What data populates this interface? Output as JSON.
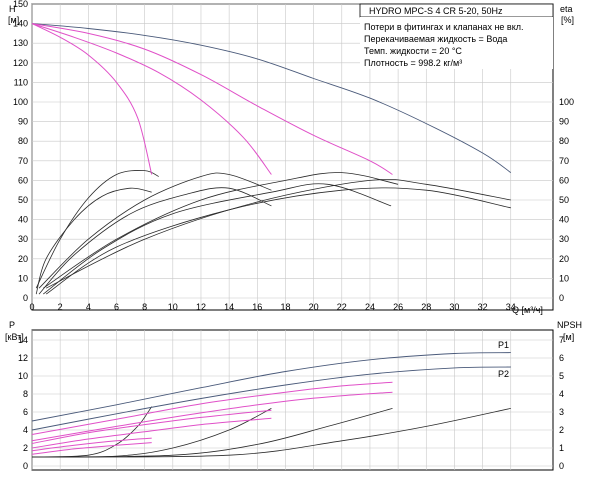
{
  "colors": {
    "system": "#4a5a7a",
    "pink": "#e050c8",
    "eff": "#2b2b2b"
  },
  "top_panel": {
    "title": "HYDRO MPC-S 4 CR 5-20, 50Hz",
    "notes": [
      "Потери в фитингах и клапанах не вкл.",
      "Перекачиваемая жидкость = Вода",
      "Темп. жидкости = 20 °C",
      "Плотность = 998.2 кг/м³"
    ],
    "y_left_label": "H",
    "y_left_unit": "[м]",
    "y_right_label": "eta",
    "y_right_unit": "[%]",
    "x_label": "Q [м³/ч]"
  },
  "bottom_panel": {
    "y_left_label": "P",
    "y_left_unit": "[кВт]",
    "y_right_label": "NPSH",
    "y_right_unit": "[м]",
    "series_labels": [
      "P1",
      "P2"
    ]
  },
  "chart_data": [
    {
      "type": "line",
      "title": "HYDRO MPC-S 4 CR 5-20, 50Hz",
      "xlabel": "Q [м³/ч]",
      "ylabel": "H [м]",
      "y2label": "eta [%]",
      "x_ticks": [
        0,
        2,
        4,
        6,
        8,
        10,
        12,
        14,
        16,
        18,
        20,
        22,
        24,
        26,
        28,
        30,
        32,
        34
      ],
      "y_ticks": [
        0,
        10,
        20,
        30,
        40,
        50,
        60,
        70,
        80,
        90,
        100,
        110,
        120,
        130,
        140,
        150
      ],
      "y2_ticks": [
        0,
        10,
        20,
        30,
        40,
        50,
        60,
        70,
        80,
        90,
        100
      ],
      "xlim": [
        0,
        37
      ],
      "ylim": [
        0,
        150
      ],
      "y2lim": [
        0,
        150
      ],
      "grid": true,
      "head_curves": [
        {
          "points": [
            [
              0,
              140
            ],
            [
              4,
              137.5
            ],
            [
              8,
              134
            ],
            [
              12,
              129
            ],
            [
              16,
              122
            ],
            [
              20,
              112
            ],
            [
              24,
              102
            ],
            [
              28,
              89
            ],
            [
              32,
              74
            ],
            [
              34,
              64
            ]
          ]
        },
        {
          "points": [
            [
              0,
              140
            ],
            [
              4,
              135
            ],
            [
              8,
              127
            ],
            [
              12,
              114
            ],
            [
              16,
              98
            ],
            [
              20,
              83
            ],
            [
              24,
              70
            ],
            [
              25.6,
              63
            ]
          ]
        },
        {
          "points": [
            [
              0,
              140
            ],
            [
              3,
              133
            ],
            [
              6,
              125
            ],
            [
              9,
              115
            ],
            [
              12,
              101
            ],
            [
              15,
              82
            ],
            [
              17,
              63
            ]
          ]
        },
        {
          "points": [
            [
              0,
              140
            ],
            [
              2,
              133
            ],
            [
              4,
              124
            ],
            [
              6,
              110
            ],
            [
              7.5,
              92
            ],
            [
              8.5,
              63
            ]
          ]
        }
      ],
      "eff_curves": [
        {
          "points": [
            [
              0.3,
              5
            ],
            [
              2,
              30
            ],
            [
              4,
              51
            ],
            [
              6,
              63
            ],
            [
              8,
              65
            ],
            [
              9,
              62
            ]
          ]
        },
        {
          "points": [
            [
              0.5,
              5
            ],
            [
              4,
              30
            ],
            [
              8,
              50
            ],
            [
              12,
              62
            ],
            [
              14,
              63
            ],
            [
              17,
              55
            ]
          ]
        },
        {
          "points": [
            [
              0.8,
              5
            ],
            [
              6,
              30
            ],
            [
              12,
              50
            ],
            [
              18,
              60
            ],
            [
              22,
              64
            ],
            [
              26,
              58
            ]
          ]
        },
        {
          "points": [
            [
              1.0,
              5
            ],
            [
              8,
              30
            ],
            [
              16,
              49
            ],
            [
              24,
              60
            ],
            [
              28,
              58
            ],
            [
              34,
              50
            ]
          ]
        },
        {
          "points": [
            [
              0.3,
              2
            ],
            [
              1,
              20
            ],
            [
              3,
              40
            ],
            [
              5,
              52
            ],
            [
              7,
              56
            ],
            [
              8.5,
              54
            ]
          ]
        },
        {
          "points": [
            [
              0.5,
              2
            ],
            [
              3,
              22
            ],
            [
              7,
              43
            ],
            [
              11,
              53
            ],
            [
              14,
              56
            ],
            [
              17,
              47
            ]
          ]
        },
        {
          "points": [
            [
              0.8,
              2
            ],
            [
              5,
              25
            ],
            [
              10,
              43
            ],
            [
              17,
              54
            ],
            [
              21,
              58
            ],
            [
              25.5,
              47
            ]
          ]
        },
        {
          "points": [
            [
              1.0,
              2
            ],
            [
              6,
              26
            ],
            [
              14,
              45
            ],
            [
              22,
              55
            ],
            [
              28,
              55
            ],
            [
              34,
              46
            ]
          ]
        }
      ]
    },
    {
      "type": "line",
      "ylabel": "P [кВт]",
      "y2label": "NPSH [м]",
      "xlim": [
        0,
        37
      ],
      "ylim": [
        0,
        14
      ],
      "y2lim": [
        0,
        7
      ],
      "y_ticks": [
        0,
        2,
        4,
        6,
        8,
        10,
        12,
        14
      ],
      "y2_ticks": [
        0,
        1,
        2,
        3,
        4,
        5,
        6,
        7
      ],
      "grid": true,
      "series": [
        {
          "name": "P1",
          "points": [
            [
              0,
              5
            ],
            [
              6,
              6.8
            ],
            [
              12,
              8.7
            ],
            [
              18,
              10.5
            ],
            [
              24,
              11.8
            ],
            [
              30,
              12.5
            ],
            [
              34,
              12.6
            ]
          ]
        },
        {
          "name": "P2",
          "points": [
            [
              0,
              4
            ],
            [
              6,
              5.8
            ],
            [
              12,
              7.5
            ],
            [
              18,
              9.0
            ],
            [
              24,
              10.2
            ],
            [
              30,
              10.9
            ],
            [
              34,
              11.0
            ]
          ]
        }
      ],
      "power_curves_pink": [
        {
          "points": [
            [
              0,
              3.5
            ],
            [
              6,
              5.2
            ],
            [
              12,
              6.9
            ],
            [
              18,
              8.2
            ],
            [
              22,
              8.9
            ],
            [
              25.6,
              9.3
            ]
          ]
        },
        {
          "points": [
            [
              0,
              2.8
            ],
            [
              6,
              4.4
            ],
            [
              12,
              5.9
            ],
            [
              18,
              7.2
            ],
            [
              22,
              7.8
            ],
            [
              25.6,
              8.2
            ]
          ]
        },
        {
          "points": [
            [
              0,
              2.5
            ],
            [
              4,
              3.7
            ],
            [
              8,
              4.6
            ],
            [
              12,
              5.4
            ],
            [
              17,
              6.2
            ]
          ]
        },
        {
          "points": [
            [
              0,
              2.0
            ],
            [
              4,
              3.0
            ],
            [
              8,
              3.8
            ],
            [
              12,
              4.6
            ],
            [
              17,
              5.3
            ]
          ]
        },
        {
          "points": [
            [
              0,
              1.7
            ],
            [
              3,
              2.3
            ],
            [
              6,
              2.8
            ],
            [
              8.5,
              3.1
            ]
          ]
        },
        {
          "points": [
            [
              0,
              1.3
            ],
            [
              3,
              1.9
            ],
            [
              6,
              2.3
            ],
            [
              8.5,
              2.6
            ]
          ]
        }
      ],
      "npsh_curves": [
        {
          "points": [
            [
              0,
              0.5
            ],
            [
              4,
              0.6
            ],
            [
              6,
              1.2
            ],
            [
              7.5,
              2.2
            ],
            [
              8.5,
              3.3
            ]
          ]
        },
        {
          "points": [
            [
              0,
              0.5
            ],
            [
              6,
              0.55
            ],
            [
              10,
              1.0
            ],
            [
              14,
              2.0
            ],
            [
              17,
              3.2
            ]
          ]
        },
        {
          "points": [
            [
              0,
              0.5
            ],
            [
              10,
              0.6
            ],
            [
              16,
              1.2
            ],
            [
              21,
              2.2
            ],
            [
              25.6,
              3.2
            ]
          ]
        },
        {
          "points": [
            [
              0,
              0.5
            ],
            [
              14,
              0.6
            ],
            [
              22,
              1.4
            ],
            [
              28,
              2.2
            ],
            [
              34,
              3.2
            ]
          ]
        }
      ]
    }
  ]
}
